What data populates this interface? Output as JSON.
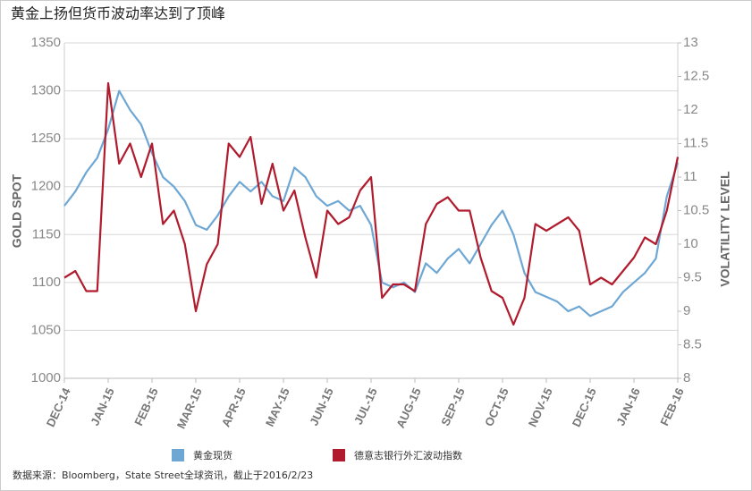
{
  "chart_data": {
    "type": "line",
    "title": "黄金上扬但货币波动率达到了顶峰",
    "ylabel": "GOLD SPOT",
    "y2label": "VOLATILITY LEVEL",
    "source": "数据来源：Bloomberg，State Street全球资讯，截止于2016/2/23",
    "x": [
      0,
      0.25,
      0.5,
      0.75,
      1,
      1.25,
      1.5,
      1.75,
      2,
      2.25,
      2.5,
      2.75,
      3,
      3.25,
      3.5,
      3.75,
      4,
      4.25,
      4.5,
      4.75,
      5,
      5.25,
      5.5,
      5.75,
      6,
      6.25,
      6.5,
      6.75,
      7,
      7.25,
      7.5,
      7.75,
      8,
      8.25,
      8.5,
      8.75,
      9,
      9.25,
      9.5,
      9.75,
      10,
      10.25,
      10.5,
      10.75,
      11,
      11.25,
      11.5,
      11.75,
      12,
      12.25,
      12.5,
      12.75,
      13,
      13.25,
      13.5,
      13.75,
      14
    ],
    "xlim": [
      0,
      14
    ],
    "xticks": [
      {
        "value": 0,
        "label": "DEC-14"
      },
      {
        "value": 1,
        "label": "JAN-15"
      },
      {
        "value": 2,
        "label": "FEB-15"
      },
      {
        "value": 3,
        "label": "MAR-15"
      },
      {
        "value": 4,
        "label": "APR-15"
      },
      {
        "value": 5,
        "label": "MAY-15"
      },
      {
        "value": 6,
        "label": "JUN-15"
      },
      {
        "value": 7,
        "label": "JUL-15"
      },
      {
        "value": 8,
        "label": "AUG-15"
      },
      {
        "value": 9,
        "label": "SEP-15"
      },
      {
        "value": 10,
        "label": "OCT-15"
      },
      {
        "value": 11,
        "label": "NOV-15"
      },
      {
        "value": 12,
        "label": "DEC-15"
      },
      {
        "value": 13,
        "label": "JAN-16"
      },
      {
        "value": 14,
        "label": "FEB-16"
      }
    ],
    "ylim": [
      1000,
      1350
    ],
    "yticks": [
      1000,
      1050,
      1100,
      1150,
      1200,
      1250,
      1300,
      1350
    ],
    "y2lim": [
      8,
      13
    ],
    "y2ticks": [
      8,
      8.5,
      9,
      9.5,
      10,
      10.5,
      11,
      11.5,
      12,
      12.5,
      13
    ],
    "grid": true,
    "series": [
      {
        "name": "黄金现货",
        "color": "#6ea7d4",
        "values": [
          1180,
          1195,
          1215,
          1230,
          1260,
          1300,
          1280,
          1265,
          1235,
          1210,
          1200,
          1185,
          1160,
          1155,
          1170,
          1190,
          1205,
          1195,
          1205,
          1190,
          1185,
          1220,
          1210,
          1190,
          1180,
          1185,
          1175,
          1180,
          1160,
          1100,
          1095,
          1100,
          1090,
          1120,
          1110,
          1125,
          1135,
          1120,
          1140,
          1160,
          1175,
          1150,
          1110,
          1090,
          1085,
          1080,
          1070,
          1075,
          1065,
          1070,
          1075,
          1090,
          1100,
          1110,
          1125,
          1190,
          1225
        ]
      },
      {
        "name": "德意志银行外汇波动指数",
        "color": "#b01c2e",
        "axis": "y2",
        "values": [
          9.5,
          9.6,
          9.3,
          9.3,
          12.4,
          11.2,
          11.5,
          11.0,
          11.5,
          10.3,
          10.5,
          10.0,
          9.0,
          9.7,
          10.0,
          11.5,
          11.3,
          11.6,
          10.6,
          11.2,
          10.5,
          10.8,
          10.1,
          9.5,
          10.5,
          10.3,
          10.4,
          10.8,
          11.0,
          9.2,
          9.4,
          9.4,
          9.3,
          10.3,
          10.6,
          10.7,
          10.5,
          10.5,
          9.8,
          9.3,
          9.2,
          8.8,
          9.2,
          10.3,
          10.2,
          10.3,
          10.4,
          10.2,
          9.4,
          9.5,
          9.4,
          9.6,
          9.8,
          10.1,
          10.0,
          10.5,
          11.3
        ]
      }
    ]
  }
}
